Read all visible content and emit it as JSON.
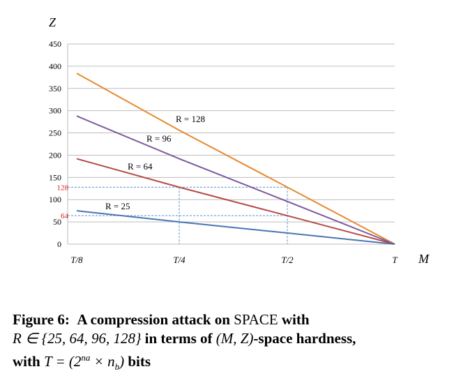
{
  "chart_data": {
    "type": "line",
    "xlabel": "M",
    "ylabel": "Z",
    "x_ticks": [
      "T/8",
      "T/4",
      "T/2",
      "T"
    ],
    "x_positions": [
      0.125,
      0.25,
      0.5,
      1.0
    ],
    "ylim": [
      0,
      450
    ],
    "y_ticks": [
      0,
      50,
      100,
      150,
      200,
      250,
      300,
      350,
      400,
      450
    ],
    "grid": true,
    "series": [
      {
        "name": "R = 128",
        "color": "#e8892f",
        "x": [
          0.125,
          0.25,
          0.5,
          1.0
        ],
        "values": [
          384,
          256,
          128,
          0
        ]
      },
      {
        "name": "R = 96",
        "color": "#7b5a9a",
        "x": [
          0.125,
          0.25,
          0.5,
          1.0
        ],
        "values": [
          288,
          192,
          96,
          0
        ]
      },
      {
        "name": "R = 64",
        "color": "#b44b44",
        "x": [
          0.125,
          0.25,
          0.5,
          1.0
        ],
        "values": [
          192,
          128,
          64,
          0
        ]
      },
      {
        "name": "R = 25",
        "color": "#4a74b4",
        "x": [
          0.125,
          0.25,
          0.5,
          1.0
        ],
        "values": [
          75,
          50,
          25,
          0
        ]
      }
    ],
    "reference_marks": [
      {
        "label": "128",
        "value": 128,
        "color": "#d62020"
      },
      {
        "label": "64",
        "value": 64,
        "color": "#d62020"
      }
    ]
  },
  "caption": {
    "line1_a": "Figure 6:",
    "line1_b": "A compression attack on",
    "line1_c": "SPACE",
    "line1_d": "with",
    "line2_a": "R ∈ {25, 64, 96, 128}",
    "line2_b": "in terms of",
    "line2_c": "(M, Z)",
    "line2_d": "-space hardness,",
    "line3_a": "with",
    "line3_b": "T = (2",
    "line3_c": "na",
    "line3_d": " × n",
    "line3_e": "b",
    "line3_f": ")",
    "line3_g": "bits"
  }
}
